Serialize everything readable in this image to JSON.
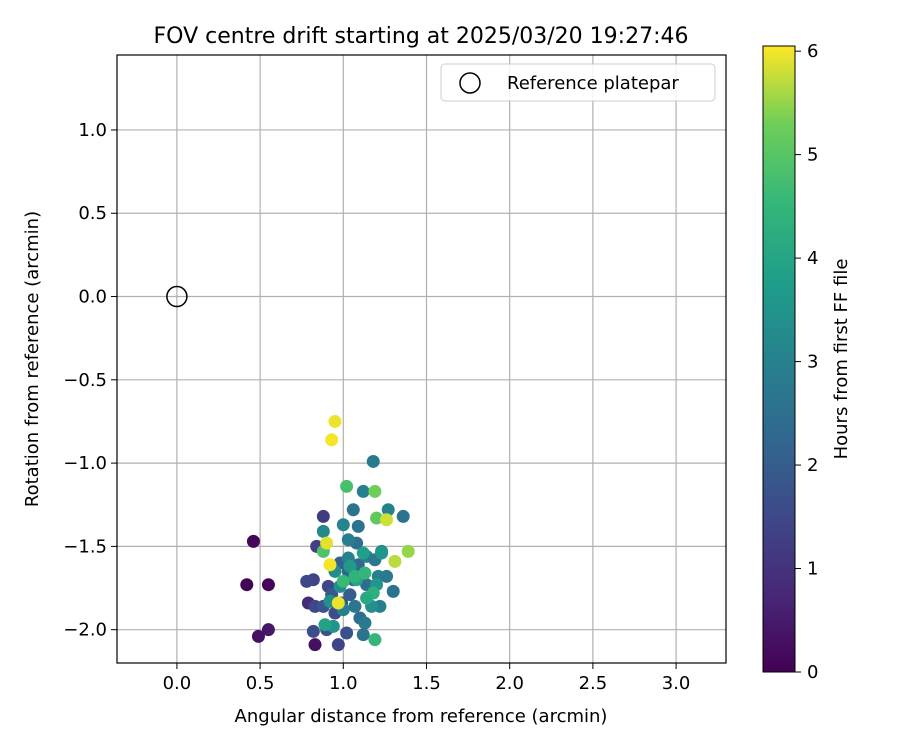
{
  "chart_data": {
    "type": "scatter",
    "title": "FOV centre drift starting at 2025/03/20 19:27:46",
    "xlabel": "Angular distance from reference (arcmin)",
    "ylabel": "Rotation from reference (arcmin)",
    "xlim": [
      -0.36,
      3.3
    ],
    "ylim": [
      -2.2,
      1.45
    ],
    "xticks": [
      0.0,
      0.5,
      1.0,
      1.5,
      2.0,
      2.5,
      3.0
    ],
    "xtick_labels": [
      "0.0",
      "0.5",
      "1.0",
      "1.5",
      "2.0",
      "2.5",
      "3.0"
    ],
    "yticks": [
      1.0,
      0.5,
      0.0,
      -0.5,
      -1.0,
      -1.5,
      -2.0
    ],
    "ytick_labels": [
      "1.0",
      "0.5",
      "0.0",
      "−0.5",
      "−1.0",
      "−1.5",
      "−2.0"
    ],
    "grid": true,
    "legend": {
      "position": "top-right",
      "entries": [
        "Reference platepar"
      ]
    },
    "reference_point": {
      "x": 0.0,
      "y": 0.0,
      "label": "Reference platepar"
    },
    "colorbar": {
      "label": "Hours from first FF file",
      "min": 0,
      "max": 6.05,
      "ticks": [
        0,
        1,
        2,
        3,
        4,
        5,
        6
      ],
      "tick_labels": [
        "0",
        "1",
        "2",
        "3",
        "4",
        "5",
        "6"
      ],
      "colormap": "viridis"
    },
    "point_fields": [
      "x",
      "y",
      "hours"
    ],
    "points": [
      [
        0.42,
        -1.73,
        0.05
      ],
      [
        0.46,
        -1.47,
        0.1
      ],
      [
        0.55,
        -1.73,
        0.1
      ],
      [
        0.49,
        -2.04,
        0.3
      ],
      [
        0.55,
        -2.0,
        0.4
      ],
      [
        0.83,
        -2.09,
        0.3
      ],
      [
        0.79,
        -1.84,
        0.8
      ],
      [
        0.82,
        -1.7,
        1.4
      ],
      [
        0.88,
        -1.32,
        1.2
      ],
      [
        0.84,
        -1.5,
        1.3
      ],
      [
        0.78,
        -1.71,
        1.5
      ],
      [
        0.83,
        -1.86,
        1.5
      ],
      [
        0.82,
        -2.01,
        1.6
      ],
      [
        0.9,
        -2.0,
        1.7
      ],
      [
        0.97,
        -2.09,
        1.4
      ],
      [
        1.02,
        -2.02,
        1.7
      ],
      [
        0.95,
        -1.9,
        1.6
      ],
      [
        0.91,
        -1.74,
        1.5
      ],
      [
        0.88,
        -1.86,
        1.8
      ],
      [
        0.93,
        -1.79,
        1.9
      ],
      [
        0.99,
        -1.84,
        1.9
      ],
      [
        1.04,
        -1.79,
        2.0
      ],
      [
        1.06,
        -1.7,
        2.1
      ],
      [
        0.98,
        -1.6,
        2.1
      ],
      [
        1.03,
        -1.65,
        2.2
      ],
      [
        1.09,
        -1.61,
        2.3
      ],
      [
        1.14,
        -1.73,
        2.4
      ],
      [
        1.1,
        -1.93,
        2.4
      ],
      [
        1.08,
        -1.48,
        2.5
      ],
      [
        1.06,
        -1.28,
        2.6
      ],
      [
        1.09,
        -1.38,
        2.6
      ],
      [
        1.18,
        -0.99,
        2.8
      ],
      [
        1.36,
        -1.32,
        2.6
      ],
      [
        1.27,
        -1.28,
        3.0
      ],
      [
        1.12,
        -1.17,
        3.0
      ],
      [
        1.03,
        -1.46,
        2.9
      ],
      [
        1.0,
        -1.37,
        3.1
      ],
      [
        0.88,
        -1.41,
        3.2
      ],
      [
        0.95,
        -1.65,
        3.3
      ],
      [
        1.03,
        -1.57,
        3.0
      ],
      [
        1.14,
        -1.56,
        2.9
      ],
      [
        1.19,
        -1.58,
        2.7
      ],
      [
        1.23,
        -1.53,
        3.2
      ],
      [
        1.21,
        -1.68,
        3.0
      ],
      [
        1.26,
        -1.68,
        2.8
      ],
      [
        1.3,
        -1.77,
        2.6
      ],
      [
        1.22,
        -1.86,
        2.9
      ],
      [
        1.17,
        -1.86,
        3.4
      ],
      [
        1.13,
        -1.96,
        2.8
      ],
      [
        1.12,
        -2.03,
        2.6
      ],
      [
        1.07,
        -1.86,
        2.7
      ],
      [
        1.0,
        -1.88,
        3.0
      ],
      [
        0.94,
        -1.98,
        3.5
      ],
      [
        0.89,
        -1.97,
        3.9
      ],
      [
        0.92,
        -1.83,
        3.4
      ],
      [
        0.98,
        -1.74,
        3.3
      ],
      [
        1.04,
        -1.62,
        3.7
      ],
      [
        1.08,
        -1.7,
        4.0
      ],
      [
        1.12,
        -1.54,
        3.8
      ],
      [
        1.2,
        -1.73,
        3.6
      ],
      [
        1.23,
        -1.54,
        3.6
      ],
      [
        1.18,
        -1.78,
        4.3
      ],
      [
        1.14,
        -1.81,
        4.1
      ],
      [
        1.07,
        -1.68,
        4.4
      ],
      [
        1.0,
        -1.71,
        4.6
      ],
      [
        0.88,
        -1.53,
        4.9
      ],
      [
        1.02,
        -1.14,
        4.8
      ],
      [
        1.19,
        -1.17,
        5.3
      ],
      [
        1.2,
        -1.33,
        5.1
      ],
      [
        1.19,
        -2.06,
        4.5
      ],
      [
        1.13,
        -1.66,
        4.5
      ],
      [
        1.39,
        -1.53,
        5.5
      ],
      [
        1.31,
        -1.59,
        5.7
      ],
      [
        1.26,
        -1.34,
        5.8
      ],
      [
        0.95,
        -0.75,
        5.95
      ],
      [
        0.93,
        -0.86,
        6.0
      ],
      [
        0.9,
        -1.48,
        5.9
      ],
      [
        0.92,
        -1.61,
        6.0
      ],
      [
        0.97,
        -1.84,
        5.95
      ]
    ]
  }
}
